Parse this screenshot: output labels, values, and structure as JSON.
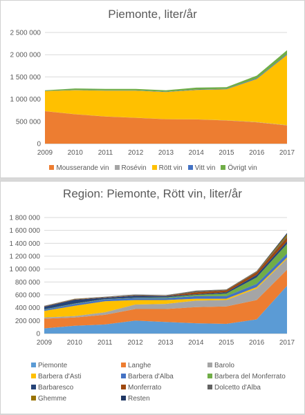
{
  "chart_data": [
    {
      "type": "area",
      "stacked": true,
      "title": "Piemonte, liter/år",
      "x": [
        "2009",
        "2010",
        "2011",
        "2012",
        "2013",
        "2014",
        "2015",
        "2016",
        "2017"
      ],
      "ylim": [
        0,
        2500000
      ],
      "yticks": [
        "0",
        "500 000",
        "1 000 000",
        "1 500 000",
        "2 000 000",
        "2 500 000"
      ],
      "grid": true,
      "legend_position": "bottom",
      "series": [
        {
          "name": "Mousserande vin",
          "color": "#ed7d31",
          "values": [
            730000,
            660000,
            610000,
            580000,
            550000,
            545000,
            520000,
            480000,
            410000
          ]
        },
        {
          "name": "Rosévin",
          "color": "#a5a5a5",
          "values": [
            2000,
            2000,
            2000,
            2000,
            2000,
            3000,
            3000,
            4000,
            5000
          ]
        },
        {
          "name": "Rött vin",
          "color": "#ffc000",
          "values": [
            450000,
            540000,
            580000,
            610000,
            610000,
            660000,
            700000,
            970000,
            1580000
          ]
        },
        {
          "name": "Vitt vin",
          "color": "#4472c4",
          "values": [
            5000,
            5000,
            5000,
            5000,
            5000,
            10000,
            10000,
            15000,
            20000
          ]
        },
        {
          "name": "Övrigt vin",
          "color": "#70ad47",
          "values": [
            13000,
            33000,
            33000,
            33000,
            33000,
            42000,
            37000,
            61000,
            85000
          ]
        }
      ]
    },
    {
      "type": "area",
      "stacked": true,
      "title": "Region: Piemonte, Rött vin, liter/år",
      "x": [
        "2009",
        "2010",
        "2011",
        "2012",
        "2013",
        "2014",
        "2015",
        "2016",
        "2017"
      ],
      "ylim": [
        0,
        1800000
      ],
      "yticks": [
        "0",
        "200 000",
        "400 000",
        "600 000",
        "800 000",
        "1 000 000",
        "1 200 000",
        "1 400 000",
        "1 600 000",
        "1 800 000"
      ],
      "grid": true,
      "legend_position": "bottom",
      "series": [
        {
          "name": "Piemonte",
          "color": "#5b9bd5",
          "values": [
            80000,
            120000,
            140000,
            200000,
            180000,
            160000,
            150000,
            220000,
            740000
          ]
        },
        {
          "name": "Langhe",
          "color": "#ed7d31",
          "values": [
            150000,
            130000,
            150000,
            180000,
            200000,
            250000,
            270000,
            300000,
            250000
          ]
        },
        {
          "name": "Barolo",
          "color": "#a5a5a5",
          "values": [
            20000,
            20000,
            40000,
            70000,
            80000,
            100000,
            100000,
            180000,
            170000
          ]
        },
        {
          "name": "Barbera d'Asti",
          "color": "#ffc000",
          "values": [
            100000,
            160000,
            170000,
            70000,
            60000,
            30000,
            20000,
            20000,
            20000
          ]
        },
        {
          "name": "Barbera d'Alba",
          "color": "#4472c4",
          "values": [
            20000,
            30000,
            30000,
            30000,
            30000,
            40000,
            40000,
            50000,
            60000
          ]
        },
        {
          "name": "Barbera del Monferrato",
          "color": "#70ad47",
          "values": [
            5000,
            5000,
            5000,
            5000,
            10000,
            20000,
            40000,
            100000,
            150000
          ]
        },
        {
          "name": "Barbaresco",
          "color": "#264478",
          "values": [
            40000,
            60000,
            20000,
            30000,
            20000,
            10000,
            20000,
            40000,
            40000
          ]
        },
        {
          "name": "Monferrato",
          "color": "#9e480e",
          "values": [
            5000,
            5000,
            5000,
            5000,
            5000,
            30000,
            30000,
            40000,
            60000
          ]
        },
        {
          "name": "Dolcetto d'Alba",
          "color": "#636363",
          "values": [
            5000,
            5000,
            5000,
            10000,
            5000,
            20000,
            10000,
            10000,
            20000
          ]
        },
        {
          "name": "Ghemme",
          "color": "#997300",
          "values": [
            3000,
            3000,
            3000,
            3000,
            3000,
            3000,
            3000,
            5000,
            30000
          ]
        },
        {
          "name": "Resten",
          "color": "#203864",
          "values": [
            2000,
            2000,
            2000,
            2000,
            2000,
            2000,
            2000,
            5000,
            20000
          ]
        }
      ]
    }
  ]
}
